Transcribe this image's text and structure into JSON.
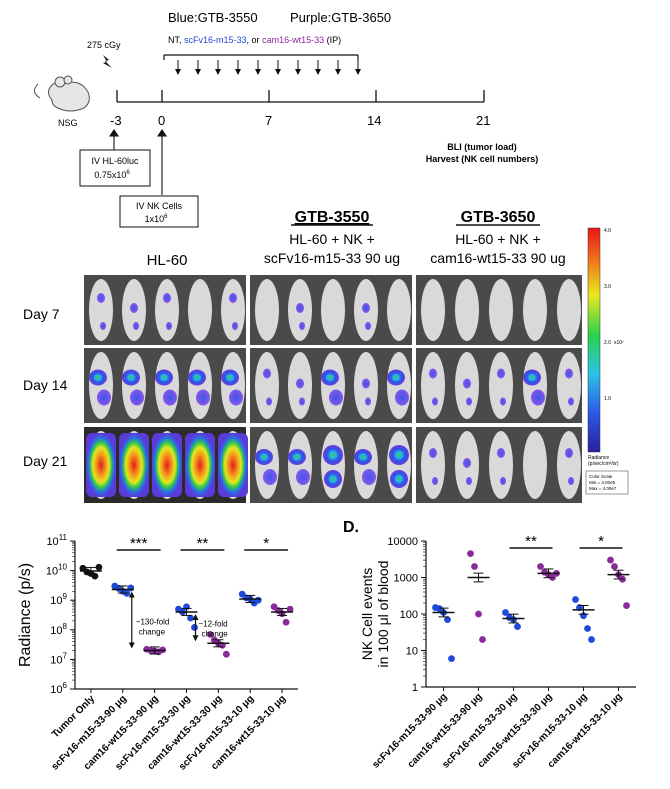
{
  "schedule": {
    "title_blue": "Blue:GTB-3550",
    "title_purple": "Purple:GTB-3650",
    "treat_prefix": "NT, ",
    "treat_blue": "scFv16-m15-33",
    "treat_mid": ", or ",
    "treat_purple": "cam16-wt15-33",
    "treat_suffix": " (IP)",
    "radiation": "275 cGy",
    "mouse_label": "NSG",
    "days": [
      "-3",
      "0",
      "7",
      "14",
      "21"
    ],
    "box1_line1": "IV HL-60luc",
    "box1_line2": "0.75x10",
    "box1_sup": "6",
    "box2_line1": "IV NK Cells",
    "box2_line2": "1x10",
    "box2_sup": "6",
    "bli_line1": "BLI (tumor load)",
    "bli_line2": "Harvest (NK cell numbers)"
  },
  "imaging": {
    "group1_label": "HL-60",
    "group2_title": "GTB-3550",
    "group2_line1": "HL-60 + NK +",
    "group2_line2": "scFv16-m15-33 90 ug",
    "group3_title": "GTB-3650",
    "group3_line1": "HL-60 + NK +",
    "group3_line2": "cam16-wt15-33 90 ug",
    "rows": [
      "Day 7",
      "Day 14",
      "Day 21"
    ],
    "scale_ticks": [
      "4.0",
      "3.0",
      "2.0",
      "1.0"
    ],
    "scale_exp": "x10⁷",
    "scale_unit1": "Radiance",
    "scale_unit2": "(p/sec/cm²/sr)",
    "scale_box1": "Color Scale",
    "scale_box2": "Min = 4.00e5",
    "scale_box3": "Max = 4.00e7"
  },
  "colors": {
    "blue": "#1f49d8",
    "purple": "#8b2a9b"
  },
  "chart_data": [
    {
      "type": "scatter",
      "title": "",
      "ylabel": "Radiance (p/s)",
      "yscale": "log",
      "ylim": [
        1000000,
        100000000000
      ],
      "ytick_labels": [
        {
          "base": "10",
          "exp": "6"
        },
        {
          "base": "10",
          "exp": "7"
        },
        {
          "base": "10",
          "exp": "8"
        },
        {
          "base": "10",
          "exp": "9"
        },
        {
          "base": "10",
          "exp": "10"
        },
        {
          "base": "10",
          "exp": "11"
        }
      ],
      "categories": [
        "Tumor Only",
        "scFv16-m15-33-90 μg",
        "cam16-wt15-33-90 μg",
        "scFv16-m15-33-30 μg",
        "cam16-wt15-33-30 μg",
        "scFv16-m15-33-10 μg",
        "cam16-wt15-33-10 μg"
      ],
      "groups": [
        {
          "name": "Tumor Only",
          "color": "black",
          "values": [
            12000000000,
            9000000000,
            8000000000,
            6500000000,
            13000000000
          ],
          "mean": 9700000000
        },
        {
          "name": "scFv16-m15-33-90 μg",
          "color": "blue",
          "values": [
            3000000000,
            2500000000,
            2000000000,
            1700000000,
            2600000000
          ],
          "mean": 2300000000
        },
        {
          "name": "cam16-wt15-33-90 μg",
          "color": "purple",
          "values": [
            22000000,
            20000000,
            19000000,
            18000000,
            21000000
          ],
          "mean": 20000000
        },
        {
          "name": "scFv16-m15-33-30 μg",
          "color": "blue",
          "values": [
            500000000,
            400000000,
            600000000,
            250000000,
            120000000
          ],
          "mean": 400000000
        },
        {
          "name": "cam16-wt15-33-30 μg",
          "color": "purple",
          "values": [
            70000000,
            45000000,
            35000000,
            30000000,
            15000000
          ],
          "mean": 35000000
        },
        {
          "name": "scFv16-m15-33-10 μg",
          "color": "blue",
          "values": [
            1600000000,
            1200000000,
            1100000000,
            800000000,
            1000000000
          ],
          "mean": 1100000000
        },
        {
          "name": "cam16-wt15-33-10 μg",
          "color": "purple",
          "values": [
            600000000,
            450000000,
            350000000,
            180000000,
            500000000
          ],
          "mean": 400000000
        }
      ],
      "significance": [
        {
          "from": 1,
          "to": 2,
          "label": "***"
        },
        {
          "from": 3,
          "to": 4,
          "label": "**"
        },
        {
          "from": 5,
          "to": 6,
          "label": "*"
        }
      ],
      "annotations": [
        {
          "line1": "~130-fold",
          "line2": "change"
        },
        {
          "line1": "~12-fold",
          "line2": "change"
        }
      ]
    },
    {
      "type": "scatter",
      "panel_label": "D.",
      "ylabel_line1": "NK Cell events",
      "ylabel_line2": "in 100 μl of blood",
      "yscale": "log",
      "ylim": [
        1,
        10000
      ],
      "ytick_labels": [
        "1",
        "10",
        "100",
        "1000",
        "10000"
      ],
      "categories": [
        "scFv16-m15-33-90 μg",
        "cam16-wt15-33-90 μg",
        "scFv16-m15-33-30 μg",
        "cam16-wt15-33-30 μg",
        "scFv16-m15-33-10 μg",
        "cam16-wt15-33-10 μg"
      ],
      "groups": [
        {
          "name": "scFv16-m15-33-90 μg",
          "color": "blue",
          "values": [
            150,
            140,
            110,
            70,
            6
          ],
          "mean": 110
        },
        {
          "name": "cam16-wt15-33-90 μg",
          "color": "purple",
          "values": [
            4500,
            2000,
            100,
            20
          ],
          "mean": 1000
        },
        {
          "name": "scFv16-m15-33-30 μg",
          "color": "blue",
          "values": [
            110,
            80,
            70,
            45
          ],
          "mean": 75
        },
        {
          "name": "cam16-wt15-33-30 μg",
          "color": "purple",
          "values": [
            2000,
            1400,
            1200,
            1000,
            1300
          ],
          "mean": 1300
        },
        {
          "name": "scFv16-m15-33-10 μg",
          "color": "blue",
          "values": [
            250,
            150,
            90,
            40,
            20
          ],
          "mean": 130
        },
        {
          "name": "cam16-wt15-33-10 μg",
          "color": "purple",
          "values": [
            3000,
            2000,
            1200,
            900,
            170
          ],
          "mean": 1200
        }
      ],
      "significance": [
        {
          "from": 2,
          "to": 3,
          "label": "**"
        },
        {
          "from": 4,
          "to": 5,
          "label": "*"
        }
      ]
    }
  ]
}
